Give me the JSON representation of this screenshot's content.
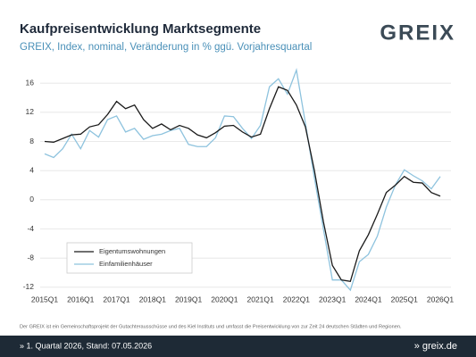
{
  "chart_data": {
    "type": "line",
    "title": "Kaufpreisentwicklung Marktsegmente",
    "subtitle": "GREIX, Index, nominal, Veränderung in % ggü. Vorjahresquartal",
    "logo": "GREIX",
    "categories": [
      "2015Q1",
      null,
      null,
      null,
      "2016Q1",
      null,
      null,
      null,
      "2017Q1",
      null,
      null,
      null,
      "2018Q1",
      null,
      null,
      null,
      "2019Q1",
      null,
      null,
      null,
      "2020Q1",
      null,
      null,
      null,
      "2021Q1",
      null,
      null,
      null,
      "2022Q1",
      null,
      null,
      null,
      "2023Q1",
      null,
      null,
      null,
      "2024Q1",
      null,
      null,
      null,
      "2025Q1",
      null,
      null,
      null,
      "2026Q1"
    ],
    "series": [
      {
        "name": "Eigentumswohnungen",
        "color": "#1a1a1a",
        "values": [
          8.0,
          7.9,
          8.4,
          8.9,
          9.0,
          10.0,
          10.3,
          11.7,
          13.5,
          12.5,
          13.0,
          11.0,
          9.8,
          10.4,
          9.6,
          10.2,
          9.8,
          8.9,
          8.5,
          9.2,
          10.1,
          10.2,
          9.3,
          8.6,
          9.0,
          12.5,
          15.5,
          15.0,
          13.0,
          10.0,
          4.0,
          -3.0,
          -9.0,
          -11.0,
          -11.2,
          -7.0,
          -4.8,
          -2.0,
          1.0,
          2.0,
          3.2,
          2.4,
          2.3,
          1.0,
          0.5
        ]
      },
      {
        "name": "Einfamilienhäuser",
        "color": "#8ec3de",
        "values": [
          6.3,
          5.8,
          7.0,
          9.0,
          7.0,
          9.5,
          8.6,
          11.0,
          11.5,
          9.3,
          9.8,
          8.3,
          8.8,
          9.0,
          9.5,
          9.8,
          7.6,
          7.3,
          7.3,
          8.5,
          11.5,
          11.4,
          9.8,
          8.4,
          10.2,
          15.5,
          16.6,
          14.5,
          17.8,
          10.5,
          3.0,
          -4.0,
          -11.0,
          -11.0,
          -12.4,
          -8.5,
          -7.5,
          -5.0,
          -1.0,
          2.0,
          4.1,
          3.3,
          2.6,
          1.5,
          3.2
        ]
      }
    ],
    "ylim": [
      -13,
      17
    ],
    "yticks": [
      -12,
      -8,
      -4,
      0,
      4,
      8,
      12,
      16
    ],
    "grid": true,
    "legend": "lower left",
    "note": "Der GREIX ist ein Gemeinschaftsprojekt der Gutachterausschüsse und des Kiel Instituts und umfasst die Preisentwicklung von zur Zeit 24 deutschen Städten und Regionen.",
    "footer_left": "» 1. Quartal 2026, Stand: 07.05.2026",
    "footer_right": "» greix.de"
  }
}
